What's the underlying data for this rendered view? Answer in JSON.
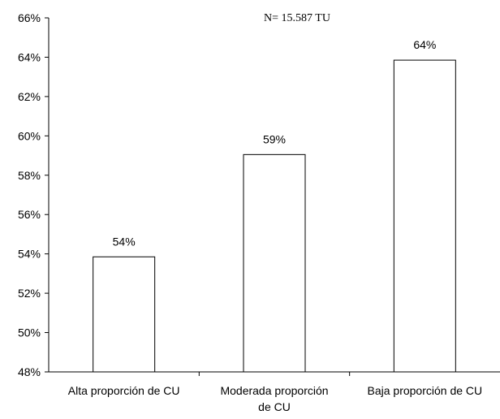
{
  "chart_data": {
    "type": "bar",
    "annotation": "N= 15.587 TU",
    "categories": [
      [
        "Alta proporción de CU"
      ],
      [
        "Moderada proporción",
        "de CU"
      ],
      [
        "Baja proporción de CU"
      ]
    ],
    "values": [
      53.85,
      59.05,
      63.85
    ],
    "data_labels": [
      "54%",
      "59%",
      "64%"
    ],
    "ylim": [
      48,
      66
    ],
    "yticks": [
      48,
      50,
      52,
      54,
      56,
      58,
      60,
      62,
      64,
      66
    ],
    "ytick_labels": [
      "48%",
      "50%",
      "52%",
      "54%",
      "56%",
      "58%",
      "60%",
      "62%",
      "64%",
      "66%"
    ],
    "grid": false,
    "colors": {
      "bar_fill": "#ffffff",
      "bar_stroke": "#000000",
      "axis": "#000000"
    }
  }
}
